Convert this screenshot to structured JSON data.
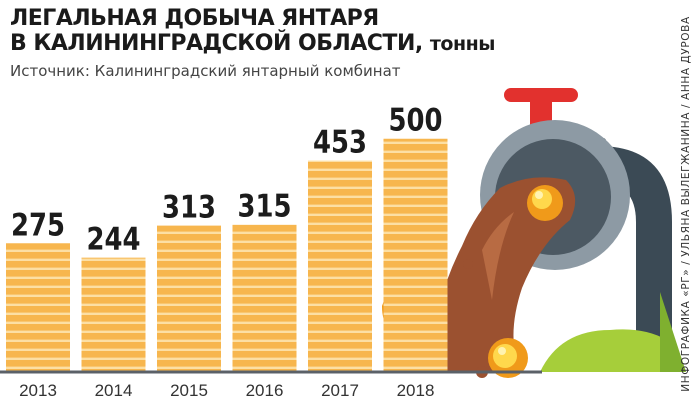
{
  "title_line1": "ЛЕГАЛЬНАЯ ДОБЫЧА ЯНТАРЯ",
  "title_line2": "В КАЛИНИНГРАДСКОЙ ОБЛАСТИ,",
  "title_unit": "тонны",
  "source": "Источник: Калининградский янтарный комбинат",
  "credit": "ИНФОГРАФИКА «РГ» / УЛЬЯНА ВЫЛЕГЖАНИНА / АННА ДУРОВА",
  "colors": {
    "bar": "#f7b64e",
    "bar_stripe": "#fcdfa4",
    "baseline": "#5b6168",
    "pipe": "#8d9aa4",
    "pipe_dark": "#3b4a55",
    "valve": "#e2312e",
    "amber_flow": "#9b5130",
    "grass": "#a6ce3a",
    "tree": "#7fb02f"
  },
  "chart_data": {
    "type": "bar",
    "categories": [
      "2013",
      "2014",
      "2015",
      "2016",
      "2017",
      "2018"
    ],
    "values": [
      275,
      244,
      313,
      315,
      453,
      500
    ],
    "ylim": [
      0,
      620
    ],
    "grid": false,
    "legend": "none"
  }
}
